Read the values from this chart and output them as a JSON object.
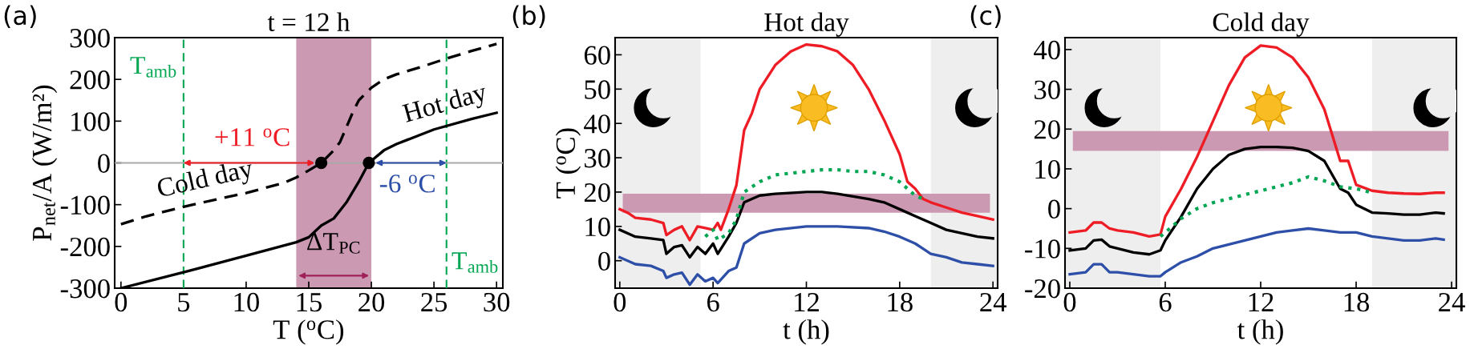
{
  "chart_data": [
    {
      "type": "line",
      "title": "t = 12 h",
      "xlabel": "T ($^{o}$C)",
      "ylabel": "P$_{net}$/A (W/m²)",
      "xlim": [
        -0.5,
        30.5
      ],
      "ylim": [
        -300,
        300
      ],
      "xticks": [
        0,
        5,
        10,
        15,
        20,
        25,
        30
      ],
      "yticks": [
        -300,
        -200,
        -100,
        0,
        100,
        200,
        300
      ],
      "series": [
        {
          "name": "Cold day",
          "color": "#000000",
          "line_style": "dashed",
          "x": [
            0,
            2,
            5,
            8,
            10,
            13,
            14,
            15,
            16,
            17,
            17.5,
            18,
            18.5,
            19,
            20,
            21,
            22,
            24,
            26,
            28,
            30
          ],
          "values": [
            -147,
            -128,
            -105,
            -85,
            -72,
            -48,
            -35,
            -18,
            0,
            30,
            50,
            85,
            120,
            150,
            180,
            200,
            212,
            230,
            250,
            268,
            285
          ]
        },
        {
          "name": "Hot day",
          "color": "#000000",
          "line_style": "solid",
          "x": [
            0,
            5,
            10,
            14,
            15,
            16,
            17,
            18,
            19,
            19.8,
            21,
            22,
            25,
            28,
            30
          ],
          "values": [
            -300,
            -262,
            -222,
            -190,
            -178,
            -150,
            -133,
            -95,
            -45,
            0,
            30,
            45,
            80,
            105,
            120
          ]
        },
        {
          "type": "scatter",
          "color": "#000000",
          "marker": "circle",
          "x": [
            16,
            19.8
          ],
          "values": [
            0,
            0
          ]
        }
      ],
      "ref_lines": [
        {
          "axis": "x",
          "value": 5,
          "label": "T$_{amb}$",
          "color": "#00a651",
          "line_style": "dashed"
        },
        {
          "axis": "x",
          "value": 26,
          "label": "T$_{amb}$",
          "color": "#00a651",
          "line_style": "dashed"
        },
        {
          "axis": "y",
          "value": 0,
          "color": "#aaaaaa",
          "line_style": "solid"
        }
      ],
      "bands": [
        {
          "axis": "x",
          "from": 14,
          "to": 20,
          "label": "ΔT$_{PC}$",
          "color": "#cc99b3"
        }
      ],
      "annotations": [
        "(a)",
        {
          "text": "+11 $^{o}$C",
          "x": 16,
          "y": 0
        },
        {
          "text": "-6 $^{o}$C",
          "x": 19.8,
          "y": 0
        }
      ]
    },
    {
      "type": "line",
      "title": "Hot day",
      "xlabel": "t (h)",
      "ylabel": "T ($^{o}$C)",
      "xlim": [
        -0.3,
        24.3
      ],
      "ylim": [
        -8,
        65
      ],
      "xticks": [
        0,
        6,
        12,
        18,
        24
      ],
      "yticks": [
        0,
        10,
        20,
        30,
        40,
        50,
        60
      ],
      "series": [
        {
          "color": "#ee1c25",
          "line_style": "solid",
          "x": [
            0,
            0.5,
            1,
            2,
            2.8,
            3,
            3.5,
            4,
            4.5,
            5,
            5.5,
            6,
            6.3,
            6.5,
            7,
            7.5,
            8,
            8.5,
            9,
            10,
            11,
            12,
            13,
            14,
            15,
            16,
            17,
            18,
            18.5,
            19,
            19.5,
            20,
            21,
            22,
            23,
            24
          ],
          "values": [
            15,
            14,
            12.5,
            12,
            11,
            7.5,
            9,
            10,
            6,
            10,
            9.5,
            9,
            11,
            9,
            15,
            22,
            38,
            43,
            50,
            57,
            61,
            63,
            62.5,
            61,
            57,
            50,
            41,
            31,
            23,
            21,
            18,
            17,
            15.5,
            14,
            13,
            12
          ]
        },
        {
          "color": "#000000",
          "line_style": "solid",
          "x": [
            0,
            1,
            2,
            2.8,
            3,
            3.5,
            4,
            4.5,
            5,
            5.5,
            6,
            6.3,
            7,
            7.5,
            8,
            9,
            10,
            12,
            13,
            14,
            16,
            17,
            18,
            19,
            19.5,
            20,
            21,
            22,
            23,
            24
          ],
          "values": [
            9,
            7,
            6.5,
            6,
            2,
            4,
            4.5,
            1,
            4,
            2,
            5,
            2,
            7,
            11,
            17,
            19,
            19.5,
            20,
            20,
            19.5,
            18,
            17,
            15,
            13,
            12,
            11,
            9,
            8,
            7,
            6.5
          ]
        },
        {
          "color": "#00a651",
          "line_style": "dotted",
          "x": [
            5.5,
            6,
            6.3,
            7,
            7.5,
            8,
            9,
            10,
            11,
            12,
            13,
            14,
            15,
            16,
            17,
            18,
            19,
            19.5
          ],
          "values": [
            7,
            9,
            6,
            8,
            12,
            20,
            23,
            25,
            25.5,
            26,
            26.5,
            26.5,
            26,
            26,
            25,
            23,
            19,
            18
          ]
        },
        {
          "color": "#2e4fa8",
          "line_style": "solid",
          "x": [
            0,
            1,
            2,
            2.8,
            3,
            3.5,
            4,
            4.5,
            5,
            5.5,
            6,
            6.3,
            7,
            7.5,
            8,
            9,
            10,
            12,
            13,
            14,
            16,
            17,
            18,
            19,
            19.5,
            20,
            21,
            22,
            23,
            24
          ],
          "values": [
            1,
            -1,
            -1.5,
            -3,
            -5,
            -4,
            -3.5,
            -7,
            -4,
            -6,
            -5,
            -6.5,
            -3,
            -2,
            5,
            8,
            9,
            10,
            10,
            10,
            9.5,
            8.5,
            7,
            5,
            3.5,
            2,
            1,
            -0.5,
            -1,
            -1.5
          ]
        }
      ],
      "bands": [
        {
          "axis": "x",
          "from": -0.3,
          "to": 5.2,
          "color": "#eeeeee"
        },
        {
          "axis": "x",
          "from": 20,
          "to": 24.3,
          "color": "#eeeeee"
        },
        {
          "axis": "y",
          "from": 14,
          "to": 19.5,
          "color": "#cc99b3"
        }
      ],
      "annotations": [
        "(b)"
      ]
    },
    {
      "type": "line",
      "title": "Cold day",
      "xlabel": "t (h)",
      "xlim": [
        -0.3,
        24.3
      ],
      "ylim": [
        -20,
        43
      ],
      "xticks": [
        0,
        6,
        12,
        18,
        24
      ],
      "yticks": [
        -20,
        -10,
        0,
        10,
        20,
        30,
        40
      ],
      "series": [
        {
          "color": "#ee1c25",
          "line_style": "solid",
          "x": [
            0,
            1,
            1.5,
            2,
            2.5,
            3,
            4,
            5,
            5.7,
            6,
            7,
            8,
            9,
            10,
            11,
            12,
            13,
            14,
            15,
            16,
            17,
            17.5,
            18,
            19,
            20,
            21,
            22,
            23,
            23.5
          ],
          "values": [
            -6,
            -5.5,
            -3.5,
            -3.5,
            -5,
            -5.5,
            -6,
            -7,
            -6.5,
            -2,
            5,
            13,
            22,
            31,
            38,
            41,
            40.5,
            38,
            33,
            25,
            12,
            12,
            6,
            4.5,
            4,
            3.8,
            3.7,
            4,
            4
          ]
        },
        {
          "color": "#000000",
          "line_style": "solid",
          "x": [
            0,
            1,
            1.5,
            2,
            2.5,
            3,
            4,
            5,
            5.7,
            6,
            7,
            8,
            9,
            10,
            11,
            12,
            13,
            14,
            15,
            16,
            17,
            17.5,
            18,
            19,
            20,
            21,
            22,
            23,
            23.5
          ],
          "values": [
            -10.5,
            -10,
            -8,
            -7.8,
            -9.5,
            -10,
            -11,
            -11.5,
            -10.5,
            -8,
            -2,
            5,
            10,
            13.5,
            15,
            15.5,
            15.5,
            15.3,
            14.5,
            12,
            5,
            4,
            1,
            -1,
            -1.2,
            -1.5,
            -1.5,
            -1,
            -1.2
          ]
        },
        {
          "color": "#00a651",
          "line_style": "dotted",
          "x": [
            5.7,
            6,
            7,
            8,
            9,
            10,
            11,
            12,
            13,
            14,
            15,
            16,
            17,
            18,
            19
          ],
          "values": [
            -7,
            -6,
            -2.5,
            0,
            1.5,
            2.5,
            3.5,
            4.5,
            5.5,
            6.5,
            8,
            7,
            5.5,
            5,
            4
          ]
        },
        {
          "color": "#2e4fa8",
          "line_style": "solid",
          "x": [
            0,
            1,
            1.5,
            2,
            2.5,
            3,
            4,
            5,
            5.7,
            6,
            7,
            8,
            9,
            10,
            11,
            12,
            13,
            14,
            15,
            16,
            17,
            18,
            19,
            20,
            21,
            22,
            23,
            23.5
          ],
          "values": [
            -16.5,
            -16,
            -14,
            -14,
            -16,
            -16,
            -16.5,
            -17,
            -17,
            -16,
            -13.5,
            -12,
            -10,
            -9,
            -8,
            -7,
            -6,
            -5.5,
            -5,
            -5.5,
            -6,
            -6,
            -7,
            -7.5,
            -8,
            -8,
            -7.5,
            -7.8
          ]
        }
      ],
      "bands": [
        {
          "axis": "x",
          "from": -0.3,
          "to": 5.7,
          "color": "#eeeeee"
        },
        {
          "axis": "x",
          "from": 19,
          "to": 24.3,
          "color": "#eeeeee"
        },
        {
          "axis": "y",
          "from": 14.5,
          "to": 19.5,
          "color": "#cc99b3"
        }
      ],
      "annotations": [
        "(c)"
      ]
    }
  ]
}
